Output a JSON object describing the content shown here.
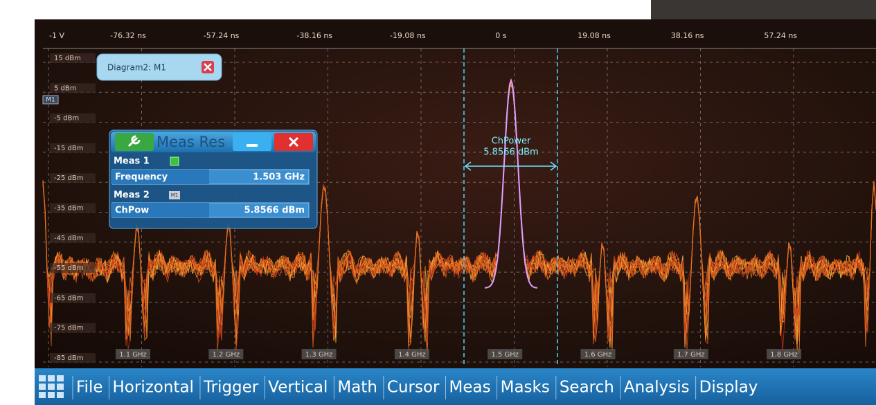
{
  "time_axis": {
    "labels": [
      "-1 V",
      "-76.32 ns",
      "-57.24 ns",
      "-38.16 ns",
      "-19.08 ns",
      "0 s",
      "19.08 ns",
      "38.16 ns",
      "57.24 ns"
    ]
  },
  "level_labels": [
    "15 dBm",
    "5 dBm",
    "-5 dBm",
    "-15 dBm",
    "-25 dBm",
    "-35 dBm",
    "-45 dBm",
    "-55 dBm",
    "-65 dBm",
    "-75 dBm",
    "-85 dBm"
  ],
  "freq_labels": [
    "1.1 GHz",
    "1.2 GHz",
    "1.3 GHz",
    "1.4 GHz",
    "1.5 GHz",
    "1.6 GHz",
    "1.7 GHz",
    "1.8 GHz"
  ],
  "marker": "M1",
  "diagram_tab": {
    "label": "Diagram2: M1"
  },
  "meas_window": {
    "title": "Meas Res",
    "meas1": {
      "label": "Meas 1",
      "name": "Frequency",
      "value": "1.503 GHz"
    },
    "meas2": {
      "label": "Meas 2",
      "badge": "M1",
      "name": "ChPow",
      "value": "5.8566 dBm"
    }
  },
  "cursor_annotation": {
    "label": "ChPower",
    "value": "5.8566 dBm"
  },
  "menu": [
    "File",
    "Horizontal",
    "Trigger",
    "Vertical",
    "Math",
    "Cursor",
    "Meas",
    "Masks",
    "Search",
    "Analysis",
    "Display"
  ]
}
